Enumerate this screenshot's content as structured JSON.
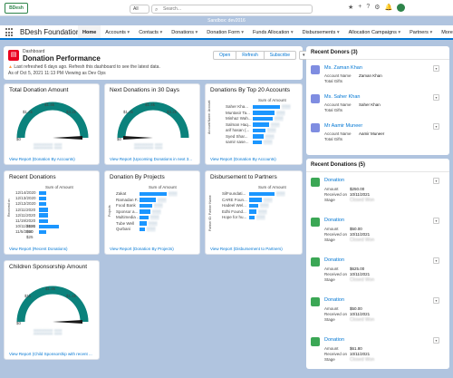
{
  "sandbox_label": "Sandbox: dev2016",
  "search": {
    "scope": "All",
    "placeholder": "Search..."
  },
  "app_name": "BDesh Foundation",
  "logo_text": "BDesh",
  "nav": [
    "Home",
    "Accounts",
    "Contacts",
    "Donations",
    "Donation Form",
    "Funds Allocation",
    "Disbursements",
    "Allocation Campaigns",
    "Partners",
    "More"
  ],
  "header": {
    "subtitle": "Dashboard",
    "title": "Donation Performance",
    "warning": "Last refreshed 6 days ago. Refresh this dashboard to see the latest data.",
    "as_of": "As of Oct 5, 2021 11:13 PM·Viewing as Dev Ops",
    "buttons": [
      "Open",
      "Refresh",
      "Subscribe"
    ]
  },
  "cards": {
    "total_donation": {
      "title": "Total Donation Amount",
      "link": "View Report (Donation By Accounts)"
    },
    "next_donations": {
      "title": "Next Donations in 30 Days",
      "link": "View Report (Upcoming Donations in next 3..."
    },
    "top20": {
      "title": "Donations By Top 20 Accounts",
      "link": "View Report (Donation By Accounts)",
      "axis": "Sum of Amount",
      "ylabel": "Account Name: Account",
      "rows": [
        "Saher Kha...",
        "Muntasir Ta...",
        "Minhaz Wah...",
        "Salman Haq...",
        "arif hasan (...",
        "Syed Shar...",
        "samir sase..."
      ]
    },
    "recent": {
      "title": "Recent Donations",
      "link": "View Report (Recent Donations)",
      "axis": "Sum of Amount",
      "ylabel": "Received on",
      "rows": [
        "12/14/2020",
        "12/13/2020",
        "12/12/2020",
        "12/11/2020",
        "12/11/2020",
        "11/19/2020",
        "10/11/2021",
        "11/5/2020"
      ],
      "values": [
        "$100",
        "$50",
        "$25"
      ]
    },
    "projects": {
      "title": "Donation By Projects",
      "link": "View Report (Donation By Projects)",
      "axis": "Sum of Amount",
      "ylabel": "Projects",
      "rows": [
        "Zakat",
        "Ramadan F...",
        "Food Bank",
        "Sponsor a...",
        "Multimedia ...",
        "Tube Well",
        "Qurbani"
      ]
    },
    "partners": {
      "title": "Disbursement to Partners",
      "link": "View Report (Disbursement to Partners)",
      "axis": "Sum of Amount",
      "ylabel": "Partner ID: Partner Name",
      "rows": [
        "SilFoundati...",
        "CARE Foun...",
        "Hadeel Wel...",
        "Edhi Found...",
        "Hope for hu..."
      ]
    },
    "sponsorship": {
      "title": "Children Sponsorship Amount",
      "link": "View Report (Child Sponsorship with recent ..."
    }
  },
  "gauge_ticks": {
    "a": "$1.4k",
    "b": "$1.4k",
    "c": "$3.2k",
    "zero": "$0"
  },
  "gauge_ticks2": {
    "a": "$1k",
    "b": "$1.4k",
    "c": "$1.4k",
    "zero": "$0"
  },
  "recent_donors": {
    "title": "Recent Donors (3)",
    "items": [
      {
        "name": "Ms. Zaman Khan",
        "account_label": "Account Name",
        "account": "Zaman Khan",
        "gifts_label": "Total Gifts"
      },
      {
        "name": "Ms. Saher Khan",
        "account_label": "Account Name",
        "account": "Saher Khan",
        "gifts_label": "Total Gifts"
      },
      {
        "name": "Mr Aamir Muneer",
        "account_label": "Account Name",
        "account": "Aamir Muneer",
        "gifts_label": "Total Gifts"
      }
    ]
  },
  "recent_donations": {
    "title": "Recent Donations (5)",
    "items": [
      {
        "name": "Donation",
        "amount_label": "Amount",
        "amount": "$250.00",
        "received_label": "Received on",
        "received": "10/11/2021",
        "stage_label": "Stage",
        "stage": "Closed Won"
      },
      {
        "name": "Donation",
        "amount_label": "Amount",
        "amount": "$50.00",
        "received_label": "Received on",
        "received": "10/11/2021",
        "stage_label": "Stage",
        "stage": "Closed Won"
      },
      {
        "name": "Donation",
        "amount_label": "Amount",
        "amount": "$625.00",
        "received_label": "Received on",
        "received": "10/11/2021",
        "stage_label": "Stage",
        "stage": "Closed Won"
      },
      {
        "name": "Donation",
        "amount_label": "Amount",
        "amount": "$50.00",
        "received_label": "Received on",
        "received": "10/11/2021",
        "stage_label": "Stage",
        "stage": "Closed Won"
      },
      {
        "name": "Donation",
        "amount_label": "Amount",
        "amount": "$61.80",
        "received_label": "Received on",
        "received": "10/11/2021",
        "stage_label": "Stage",
        "stage": "Closed Won"
      }
    ]
  }
}
